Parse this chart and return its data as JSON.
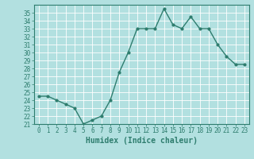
{
  "x": [
    0,
    1,
    2,
    3,
    4,
    5,
    6,
    7,
    8,
    9,
    10,
    11,
    12,
    13,
    14,
    15,
    16,
    17,
    18,
    19,
    20,
    21,
    22,
    23
  ],
  "y": [
    24.5,
    24.5,
    24.0,
    23.5,
    23.0,
    21.0,
    21.5,
    22.0,
    24.0,
    27.5,
    30.0,
    33.0,
    33.0,
    33.0,
    35.5,
    33.5,
    33.0,
    34.5,
    33.0,
    33.0,
    31.0,
    29.5,
    28.5,
    28.5
  ],
  "xlabel": "Humidex (Indice chaleur)",
  "line_color": "#2e7d6e",
  "bg_color": "#b2e0e0",
  "grid_color": "#ffffff",
  "ylim": [
    21,
    36
  ],
  "xlim": [
    -0.5,
    23.5
  ],
  "yticks": [
    21,
    22,
    23,
    24,
    25,
    26,
    27,
    28,
    29,
    30,
    31,
    32,
    33,
    34,
    35
  ],
  "xticks": [
    0,
    1,
    2,
    3,
    4,
    5,
    6,
    7,
    8,
    9,
    10,
    11,
    12,
    13,
    14,
    15,
    16,
    17,
    18,
    19,
    20,
    21,
    22,
    23
  ],
  "xlabel_fontsize": 7,
  "tick_fontsize": 5.5
}
